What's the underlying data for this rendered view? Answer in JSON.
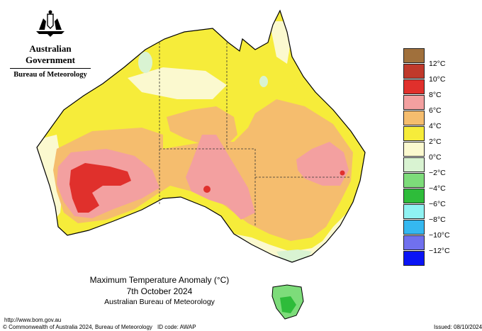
{
  "header": {
    "government": "Australian Government",
    "bureau": "Bureau of Meteorology"
  },
  "caption": {
    "title": "Maximum Temperature Anomaly (°C)",
    "date": "7th October 2024",
    "org": "Australian Bureau of Meteorology"
  },
  "footer": {
    "url": "http://www.bom.gov.au",
    "copyright": "© Commonwealth of Australia 2024, Bureau of Meteorology",
    "id_code": "ID code: AWAP",
    "issued": "Issued: 08/10/2024"
  },
  "legend": {
    "items": [
      {
        "label": "",
        "color": "#a0703c"
      },
      {
        "label": "12°C",
        "color": "#c0392b"
      },
      {
        "label": "10°C",
        "color": "#e0302c"
      },
      {
        "label": "8°C",
        "color": "#f3a0a0"
      },
      {
        "label": "6°C",
        "color": "#f5bd6e"
      },
      {
        "label": "4°C",
        "color": "#f6ec3a"
      },
      {
        "label": "2°C",
        "color": "#fbf9cf"
      },
      {
        "label": "0°C",
        "color": "#d9f3d2"
      },
      {
        "label": "−2°C",
        "color": "#7ddc7a"
      },
      {
        "label": "−4°C",
        "color": "#2ebc3a"
      },
      {
        "label": "−6°C",
        "color": "#8ff2f2"
      },
      {
        "label": "−8°C",
        "color": "#35b8f0"
      },
      {
        "label": "−10°C",
        "color": "#7070ee"
      },
      {
        "label": "−12°C",
        "color": "#0a14f5"
      }
    ]
  }
}
